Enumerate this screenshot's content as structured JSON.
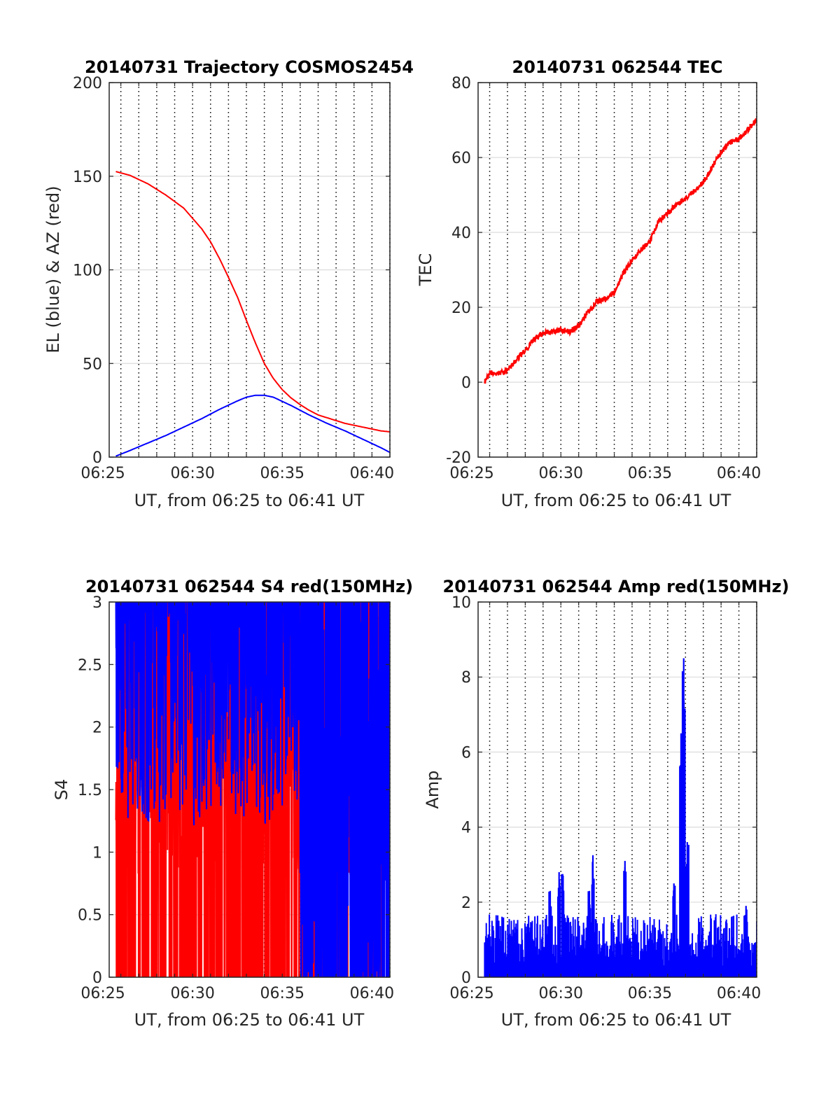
{
  "colors": {
    "red": "#ff0000",
    "blue": "#0000ff",
    "grid_dotted": "#000000",
    "grid_solid": "#dcdcdc",
    "axis": "#262626"
  },
  "chart_data": [
    {
      "id": "trajectory",
      "type": "line",
      "title": "20140731 Trajectory COSMOS2454",
      "xlabel": "UT, from 06:25 to 06:41 UT",
      "ylabel": "EL (blue) & AZ (red)",
      "xlim": [
        25.35,
        41.0
      ],
      "ylim": [
        0,
        200
      ],
      "xticks": [
        25,
        30,
        35,
        40
      ],
      "xtick_labels": [
        "06:25",
        "06:30",
        "06:35",
        "06:40"
      ],
      "yticks": [
        0,
        50,
        100,
        150,
        200
      ],
      "ytick_labels": [
        "0",
        "50",
        "100",
        "150",
        "200"
      ],
      "x_unit": "minutes after 06:00 UT",
      "grid": true,
      "series": [
        {
          "color": "blue",
          "x": [
            25.72,
            26.5,
            27.5,
            28.5,
            29.5,
            30.5,
            31.5,
            32.5,
            33.0,
            33.5,
            34.0,
            34.5,
            35.5,
            36.5,
            37.5,
            38.5,
            39.5,
            40.5,
            41.0
          ],
          "y": [
            0.5,
            3.5,
            7.5,
            11.5,
            16,
            20.5,
            25.5,
            30,
            32,
            33,
            33,
            32,
            27.5,
            22.5,
            18,
            14,
            9.5,
            5,
            2.5
          ]
        },
        {
          "color": "red",
          "x": [
            25.72,
            26.5,
            27.5,
            28.5,
            29.5,
            30.5,
            31.0,
            31.5,
            32.0,
            32.5,
            33.0,
            33.5,
            34.0,
            34.5,
            35.0,
            35.5,
            36.0,
            36.5,
            37.0,
            37.5,
            38.0,
            38.5,
            39.0,
            39.5,
            40.0,
            40.5,
            41.0
          ],
          "y": [
            152.5,
            150.5,
            146,
            140,
            133,
            122,
            115,
            106,
            96,
            85.5,
            73,
            61,
            50,
            42,
            36,
            31.5,
            28,
            25,
            22.5,
            21,
            19.5,
            18,
            17,
            16,
            15,
            14,
            13.5
          ]
        }
      ]
    },
    {
      "id": "tec",
      "type": "line",
      "title": "20140731 062544 TEC",
      "xlabel": "UT, from 06:25 to 06:41 UT",
      "ylabel": "TEC",
      "xlim": [
        25.35,
        41.0
      ],
      "ylim": [
        -20,
        80
      ],
      "xticks": [
        25,
        30,
        35,
        40
      ],
      "xtick_labels": [
        "06:25",
        "06:30",
        "06:35",
        "06:40"
      ],
      "yticks": [
        -20,
        0,
        20,
        40,
        60,
        80
      ],
      "ytick_labels": [
        "-20",
        "0",
        "20",
        "40",
        "60",
        "80"
      ],
      "x_unit": "minutes after 06:00 UT",
      "grid": true,
      "series": [
        {
          "color": "red",
          "x": [
            25.72,
            26.0,
            26.5,
            27.0,
            27.5,
            28.0,
            28.5,
            29.0,
            29.5,
            30.0,
            30.5,
            31.0,
            31.5,
            32.0,
            32.5,
            33.0,
            33.5,
            34.0,
            34.5,
            35.0,
            35.5,
            36.0,
            36.5,
            37.0,
            37.5,
            38.0,
            38.5,
            39.0,
            39.5,
            40.0,
            40.5,
            41.0
          ],
          "y": [
            0,
            2.5,
            2.5,
            3,
            6,
            8.5,
            11.5,
            13,
            13.5,
            14,
            13.5,
            15,
            18.5,
            21.5,
            22,
            24,
            29,
            32.5,
            35.5,
            37.5,
            43,
            45,
            47.5,
            49,
            51,
            53.5,
            57.5,
            61.5,
            64,
            65,
            67.5,
            70
          ]
        }
      ]
    },
    {
      "id": "s4",
      "type": "line",
      "title": "20140731 062544 S4 red(150MHz)",
      "xlabel": "UT, from 06:25 to 06:41 UT",
      "ylabel": "S4",
      "xlim": [
        25.35,
        41.0
      ],
      "ylim": [
        0,
        3
      ],
      "xticks": [
        25,
        30,
        35,
        40
      ],
      "xtick_labels": [
        "06:25",
        "06:30",
        "06:35",
        "06:40"
      ],
      "yticks": [
        0,
        0.5,
        1,
        1.5,
        2,
        2.5,
        3
      ],
      "ytick_labels": [
        "0",
        "0.5",
        "1",
        "1.5",
        "2",
        "2.5",
        "3"
      ],
      "x_unit": "minutes after 06:00 UT",
      "grid": true,
      "series": [
        {
          "color": "red",
          "x_range": [
            25.72,
            41.0
          ],
          "y_range": [
            0,
            3
          ],
          "style": "dense noisy signal spanning full range"
        },
        {
          "color": "blue",
          "x_range": [
            25.72,
            41.0
          ],
          "y_range": [
            0,
            3
          ],
          "style": "dense noisy signal, mostly between 1.5 and 3 before 06:36, full range after"
        }
      ]
    },
    {
      "id": "amp",
      "type": "bar",
      "title": "20140731 062544 Amp red(150MHz)",
      "xlabel": "UT, from 06:25 to 06:41 UT",
      "ylabel": "Amp",
      "xlim": [
        25.35,
        41.0
      ],
      "ylim": [
        0,
        10
      ],
      "xticks": [
        25,
        30,
        35,
        40
      ],
      "xtick_labels": [
        "06:25",
        "06:30",
        "06:35",
        "06:40"
      ],
      "yticks": [
        0,
        2,
        4,
        6,
        8,
        10
      ],
      "ytick_labels": [
        "0",
        "2",
        "4",
        "6",
        "8",
        "10"
      ],
      "x_unit": "minutes after 06:00 UT",
      "grid": true,
      "baseline_range": [
        0.4,
        1.7
      ],
      "peaks": [
        {
          "x": 29.4,
          "y": 2.3
        },
        {
          "x": 29.9,
          "y": 2.8
        },
        {
          "x": 30.1,
          "y": 2.75
        },
        {
          "x": 31.6,
          "y": 2.3
        },
        {
          "x": 31.8,
          "y": 3.25
        },
        {
          "x": 33.6,
          "y": 3.1
        },
        {
          "x": 36.35,
          "y": 2.5
        },
        {
          "x": 36.75,
          "y": 6.5
        },
        {
          "x": 36.9,
          "y": 8.5
        },
        {
          "x": 37.1,
          "y": 3.6
        },
        {
          "x": 40.4,
          "y": 1.9
        }
      ],
      "series": [
        {
          "color": "blue"
        }
      ]
    }
  ]
}
